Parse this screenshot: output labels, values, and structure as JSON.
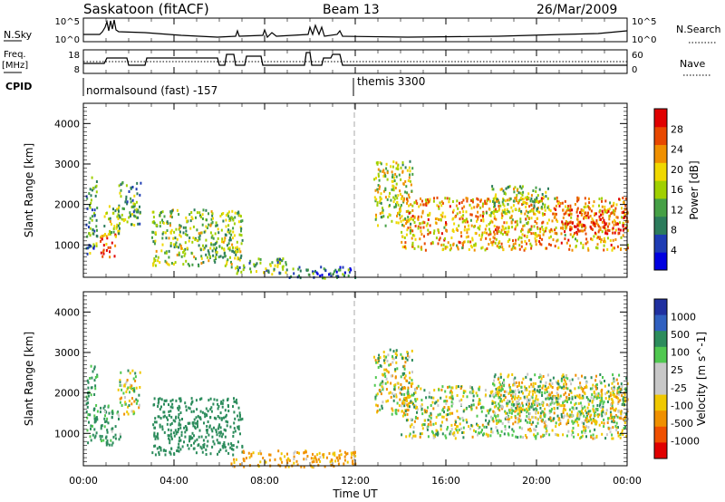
{
  "header": {
    "station": "Saskatoon (fitACF)",
    "beam": "Beam 13",
    "date": "26/Mar/2009"
  },
  "top_panels": {
    "nsky_label": "N.Sky",
    "nsky_ticks": [
      "10^5",
      "10^0"
    ],
    "nsearch_label": "N.Search",
    "nsearch_ticks": [
      "10^5",
      "10^0"
    ],
    "freq_label": "Freq.",
    "freq_unit": "[MHz]",
    "freq_ticks": [
      "18",
      "8"
    ],
    "nave_label": "Nave",
    "nave_ticks": [
      "60",
      "0"
    ],
    "cpid_label": "CPID",
    "cpid_segments": [
      {
        "label": "normalsound (fast) -157",
        "start_hour": 0
      },
      {
        "label": "themis 3300",
        "start_hour": 12.0
      }
    ]
  },
  "colors": {
    "power_scale": [
      "#0000e0",
      "#1e3cb4",
      "#2c7c5c",
      "#46a046",
      "#a0d000",
      "#f0d800",
      "#f09000",
      "#e84800",
      "#e00000"
    ],
    "velocity_scale": [
      "#e00000",
      "#f05000",
      "#f09000",
      "#f0c800",
      "#c8c8c8",
      "#c8c8c8",
      "#50c850",
      "#2c8c5c",
      "#3060c0",
      "#2030a0"
    ],
    "marker": "#aaaaaa"
  },
  "chart_data": [
    {
      "type": "heatmap",
      "name": "power",
      "ylabel": "Slant Range [km]",
      "yticks": [
        "1000",
        "2000",
        "3000",
        "4000"
      ],
      "ylim": [
        200,
        4500
      ],
      "xlim": [
        0,
        24
      ],
      "colorbar_label": "Power [dB]",
      "colorbar_ticks": [
        "4",
        "8",
        "12",
        "16",
        "20",
        "24",
        "28"
      ],
      "clim": [
        0,
        30
      ],
      "echo_regions": [
        {
          "t": [
            0.1,
            0.6
          ],
          "r": [
            800,
            2700
          ],
          "value": 10
        },
        {
          "t": [
            0.7,
            1.4
          ],
          "r": [
            700,
            1300
          ],
          "value": 26
        },
        {
          "t": [
            0.8,
            1.6
          ],
          "r": [
            1200,
            2000
          ],
          "value": 14
        },
        {
          "t": [
            1.5,
            2.5
          ],
          "r": [
            1500,
            2600
          ],
          "value": 12
        },
        {
          "t": [
            3.0,
            7.0
          ],
          "r": [
            500,
            1900
          ],
          "value": 14
        },
        {
          "t": [
            6.5,
            9.0
          ],
          "r": [
            300,
            700
          ],
          "value": 12
        },
        {
          "t": [
            9.0,
            12.0
          ],
          "r": [
            200,
            500
          ],
          "value": 8
        },
        {
          "t": [
            12.8,
            14.5
          ],
          "r": [
            1500,
            3100
          ],
          "value": 16
        },
        {
          "t": [
            14.0,
            24.0
          ],
          "r": [
            900,
            2200
          ],
          "value": 20
        },
        {
          "t": [
            18.0,
            20.5
          ],
          "r": [
            1800,
            2500
          ],
          "value": 14
        },
        {
          "t": [
            21.0,
            24.0
          ],
          "r": [
            1300,
            1900
          ],
          "value": 26
        }
      ]
    },
    {
      "type": "heatmap",
      "name": "velocity",
      "ylabel": "Slant Range [km]",
      "yticks": [
        "1000",
        "2000",
        "3000",
        "4000"
      ],
      "ylim": [
        200,
        4500
      ],
      "xlabel": "Time UT",
      "xticks": [
        "00:00",
        "04:00",
        "08:00",
        "12:00",
        "16:00",
        "20:00",
        "00:00"
      ],
      "xlim": [
        0,
        24
      ],
      "colorbar_label": "Velocity [m s^-1]",
      "colorbar_ticks": [
        "1000",
        "500",
        "100",
        "25",
        "-25",
        "-100",
        "-500",
        "-1000"
      ],
      "echo_regions": [
        {
          "t": [
            0.1,
            0.6
          ],
          "r": [
            800,
            2700
          ],
          "value": 200
        },
        {
          "t": [
            0.7,
            1.6
          ],
          "r": [
            700,
            1800
          ],
          "value": 150
        },
        {
          "t": [
            1.5,
            2.5
          ],
          "r": [
            1500,
            2600
          ],
          "value": 0
        },
        {
          "t": [
            3.0,
            7.0
          ],
          "r": [
            500,
            1900
          ],
          "value": 250
        },
        {
          "t": [
            6.5,
            12.0
          ],
          "r": [
            200,
            600
          ],
          "value": -150
        },
        {
          "t": [
            12.8,
            14.5
          ],
          "r": [
            1500,
            3100
          ],
          "value": 0
        },
        {
          "t": [
            14.0,
            24.0
          ],
          "r": [
            900,
            2200
          ],
          "value": 0
        },
        {
          "t": [
            18.0,
            24.0
          ],
          "r": [
            1300,
            2500
          ],
          "value": 0
        }
      ]
    }
  ]
}
